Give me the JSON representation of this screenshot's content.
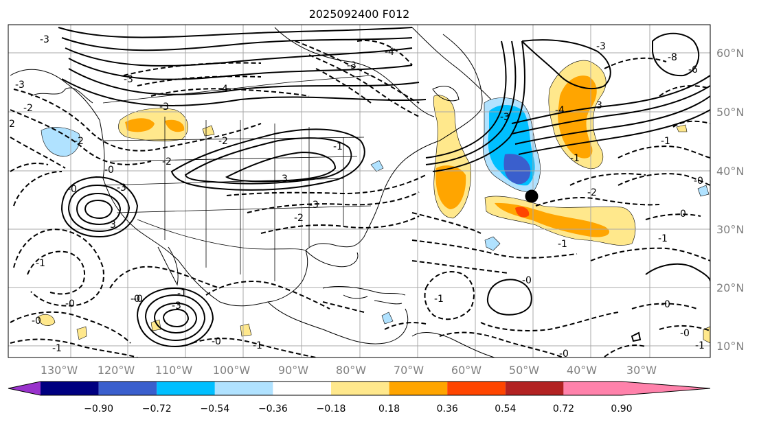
{
  "title": "2025092400 F012",
  "longitude_labels": [
    "130°W",
    "120°W",
    "110°W",
    "100°W",
    "90°W",
    "80°W",
    "70°W",
    "60°W",
    "50°W",
    "40°W",
    "30°W"
  ],
  "latitude_labels": [
    "60°N",
    "50°N",
    "40°N",
    "30°N",
    "20°N",
    "10°N"
  ],
  "colorbar": {
    "ticks": [
      "−0.90",
      "−0.72",
      "−0.54",
      "−0.36",
      "−0.18",
      "0.18",
      "0.36",
      "0.54",
      "0.72",
      "0.90"
    ],
    "colors": {
      "under": "#9932cc",
      "bins": [
        "#000080",
        "#3a5fcd",
        "#00bfff",
        "#b0e2ff",
        "#ffffff",
        "#ffe88c",
        "#ffa500",
        "#ff4500",
        "#b22222"
      ],
      "over": "#ff82ab"
    }
  },
  "contour_labels": [
    "-3",
    "-3",
    "-2",
    "-2",
    "-2",
    "-3",
    "-3",
    "-4",
    "-3",
    "-4",
    "-2",
    "-0",
    "-2",
    "-0",
    "-3",
    "3",
    "3",
    "-1",
    "-1",
    "-3",
    "-0",
    "-1",
    "-3",
    "-2",
    "-3",
    "-4",
    "3",
    "-3",
    "-8",
    "-6",
    "-0",
    "-1",
    "-1",
    "-2",
    "-0",
    "-1",
    "-1",
    "-0",
    "-0",
    "-0",
    "-1",
    "-0",
    "-1",
    "-0",
    "-0",
    "-0",
    "-0",
    "-1",
    "-1"
  ],
  "marker": "black-dot",
  "map_features": [
    "coastlines",
    "country-borders",
    "us-state-borders",
    "graticule"
  ]
}
